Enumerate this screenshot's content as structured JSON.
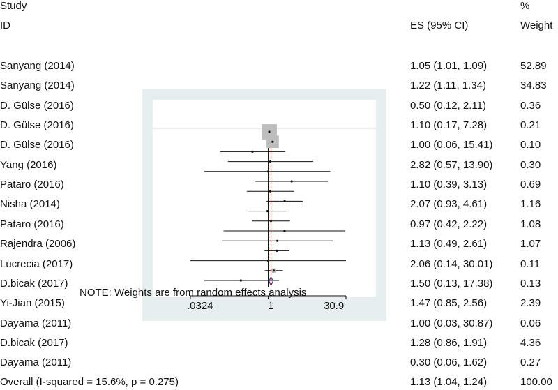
{
  "chart_data": {
    "type": "forest",
    "title": "",
    "xlabel": "",
    "ylabel": "",
    "x_scale": "log",
    "ref_line": 1,
    "xticks": [
      ".0324",
      "1",
      "30.9"
    ],
    "header": {
      "study_line1": "Study",
      "study_line2": "ID",
      "es_label": "ES (95% CI)",
      "weight_line1": "%",
      "weight_line2": "Weight"
    },
    "note": "NOTE: Weights are from random effects analysis",
    "studies": [
      {
        "id": "Sanyang (2014)",
        "es": 1.05,
        "lo": 1.01,
        "hi": 1.09,
        "es_text": "1.05 (1.01, 1.09)",
        "weight": 52.89,
        "weight_text": "52.89"
      },
      {
        "id": "Sanyang (2014)",
        "es": 1.22,
        "lo": 1.11,
        "hi": 1.34,
        "es_text": "1.22 (1.11, 1.34)",
        "weight": 34.83,
        "weight_text": "34.83"
      },
      {
        "id": "D. Gülse (2016)",
        "es": 0.5,
        "lo": 0.12,
        "hi": 2.11,
        "es_text": "0.50 (0.12, 2.11)",
        "weight": 0.36,
        "weight_text": "0.36"
      },
      {
        "id": "D. Gülse (2016)",
        "es": 1.1,
        "lo": 0.17,
        "hi": 7.28,
        "es_text": "1.10 (0.17, 7.28)",
        "weight": 0.21,
        "weight_text": "0.21"
      },
      {
        "id": "D. Gülse (2016)",
        "es": 1.0,
        "lo": 0.06,
        "hi": 15.41,
        "es_text": "1.00 (0.06, 15.41)",
        "weight": 0.1,
        "weight_text": "0.10"
      },
      {
        "id": "Yang (2016)",
        "es": 2.82,
        "lo": 0.57,
        "hi": 13.9,
        "es_text": "2.82 (0.57, 13.90)",
        "weight": 0.3,
        "weight_text": "0.30"
      },
      {
        "id": "Pataro (2016)",
        "es": 1.1,
        "lo": 0.39,
        "hi": 3.13,
        "es_text": "1.10 (0.39, 3.13)",
        "weight": 0.69,
        "weight_text": "0.69"
      },
      {
        "id": "Nisha (2014)",
        "es": 2.07,
        "lo": 0.93,
        "hi": 4.61,
        "es_text": "2.07 (0.93, 4.61)",
        "weight": 1.16,
        "weight_text": "1.16"
      },
      {
        "id": "Pataro (2016)",
        "es": 0.97,
        "lo": 0.42,
        "hi": 2.22,
        "es_text": "0.97 (0.42, 2.22)",
        "weight": 1.08,
        "weight_text": "1.08"
      },
      {
        "id": "Rajendra (2006)",
        "es": 1.13,
        "lo": 0.49,
        "hi": 2.61,
        "es_text": "1.13 (0.49, 2.61)",
        "weight": 1.07,
        "weight_text": "1.07"
      },
      {
        "id": "Lucrecia (2017)",
        "es": 2.06,
        "lo": 0.14,
        "hi": 30.01,
        "es_text": "2.06 (0.14, 30.01)",
        "weight": 0.11,
        "weight_text": "0.11"
      },
      {
        "id": "D.bicak (2017)",
        "es": 1.5,
        "lo": 0.13,
        "hi": 17.38,
        "es_text": "1.50 (0.13, 17.38)",
        "weight": 0.13,
        "weight_text": "0.13"
      },
      {
        "id": "Yi-Jian (2015)",
        "es": 1.47,
        "lo": 0.85,
        "hi": 2.56,
        "es_text": "1.47 (0.85, 2.56)",
        "weight": 2.39,
        "weight_text": "2.39"
      },
      {
        "id": "Dayama (2011)",
        "es": 1.0,
        "lo": 0.03,
        "hi": 30.87,
        "es_text": "1.00 (0.03, 30.87)",
        "weight": 0.06,
        "weight_text": "0.06"
      },
      {
        "id": "D.bicak (2017)",
        "es": 1.28,
        "lo": 0.86,
        "hi": 1.91,
        "es_text": "1.28 (0.86, 1.91)",
        "weight": 4.36,
        "weight_text": "4.36"
      },
      {
        "id": "Dayama (2011)",
        "es": 0.3,
        "lo": 0.06,
        "hi": 1.62,
        "es_text": "0.30 (0.06, 1.62)",
        "weight": 0.27,
        "weight_text": "0.27"
      }
    ],
    "overall": {
      "id": "Overall  (I-squared = 15.6%, p = 0.275)",
      "es": 1.13,
      "lo": 1.04,
      "hi": 1.24,
      "es_text": "1.13 (1.04, 1.24)",
      "weight": 100.0,
      "weight_text": "100.00"
    },
    "colors": {
      "frame_fill": "#e7eef0",
      "marker_box": "#bdbdbd",
      "diamond": "#2c2c7c",
      "overall_line": "#c0392b",
      "ink": "#111111"
    }
  }
}
